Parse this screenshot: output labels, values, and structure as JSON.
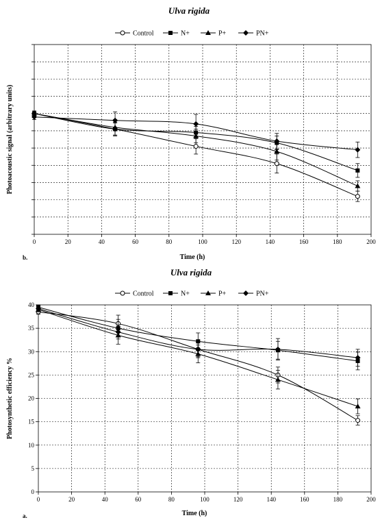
{
  "chart_data": [
    {
      "type": "line",
      "title": "Ulva rigida",
      "panel_label": "b.",
      "xlabel": "Time (h)",
      "ylabel": "Photoacoustic signal (arbitrary units)",
      "xlim": [
        0,
        200
      ],
      "ylim": [
        0,
        11
      ],
      "x_ticks": [
        0,
        20,
        40,
        60,
        80,
        100,
        120,
        140,
        160,
        180,
        200
      ],
      "y_ticks_labeled": false,
      "grid": true,
      "legend_position": "top",
      "series": [
        {
          "name": "Control",
          "marker": "circle-open",
          "x": [
            0,
            48,
            96,
            144,
            192
          ],
          "y": [
            7.0,
            6.1,
            5.1,
            4.1,
            2.2
          ],
          "err": [
            0.15,
            0.4,
            0.45,
            0.55,
            0.3
          ]
        },
        {
          "name": "N+",
          "marker": "square",
          "x": [
            0,
            48,
            96,
            144,
            192
          ],
          "y": [
            7.0,
            6.1,
            5.9,
            5.3,
            3.7
          ],
          "err": [
            0.15,
            0.35,
            0.35,
            0.4,
            0.4
          ]
        },
        {
          "name": "P+",
          "marker": "triangle",
          "x": [
            0,
            48,
            96,
            144,
            192
          ],
          "y": [
            7.0,
            6.2,
            5.7,
            4.8,
            2.8
          ],
          "err": [
            0.15,
            0.45,
            0.4,
            0.5,
            0.3
          ]
        },
        {
          "name": "PN+",
          "marker": "diamond",
          "x": [
            0,
            48,
            96,
            144,
            192
          ],
          "y": [
            6.8,
            6.6,
            6.4,
            5.4,
            4.9
          ],
          "err": [
            0.15,
            0.5,
            0.55,
            0.45,
            0.45
          ]
        }
      ]
    },
    {
      "type": "line",
      "title": "Ulva rigida",
      "panel_label": "a.",
      "xlabel": "Time (h)",
      "ylabel": "Photosynthetic efficiency %",
      "xlim": [
        0,
        200
      ],
      "ylim": [
        0,
        40
      ],
      "x_ticks": [
        0,
        20,
        40,
        60,
        80,
        100,
        120,
        140,
        160,
        180,
        200
      ],
      "y_ticks": [
        0,
        5,
        10,
        15,
        20,
        25,
        30,
        35,
        40
      ],
      "y_ticks_labeled": true,
      "grid": true,
      "legend_position": "top",
      "series": [
        {
          "name": "Control",
          "marker": "circle-open",
          "x": [
            0,
            48,
            96,
            144,
            192
          ],
          "y": [
            38.5,
            36.0,
            30.5,
            25.0,
            15.3
          ],
          "err": [
            0.5,
            1.8,
            1.8,
            1.7,
            1.0
          ]
        },
        {
          "name": "N+",
          "marker": "square",
          "x": [
            0,
            48,
            96,
            144,
            192
          ],
          "y": [
            39.5,
            35.0,
            32.2,
            30.3,
            28.0
          ],
          "err": [
            0.5,
            1.9,
            1.8,
            1.9,
            1.9
          ]
        },
        {
          "name": "P+",
          "marker": "triangle",
          "x": [
            0,
            48,
            96,
            144,
            192
          ],
          "y": [
            39.0,
            33.5,
            29.5,
            24.0,
            18.3
          ],
          "err": [
            0.5,
            1.9,
            1.9,
            2.0,
            1.6
          ]
        },
        {
          "name": "PN+",
          "marker": "diamond",
          "x": [
            0,
            48,
            96,
            144,
            192
          ],
          "y": [
            39.2,
            34.2,
            30.5,
            30.5,
            28.7
          ],
          "err": [
            0.5,
            1.5,
            1.6,
            2.3,
            1.8
          ]
        }
      ]
    }
  ]
}
